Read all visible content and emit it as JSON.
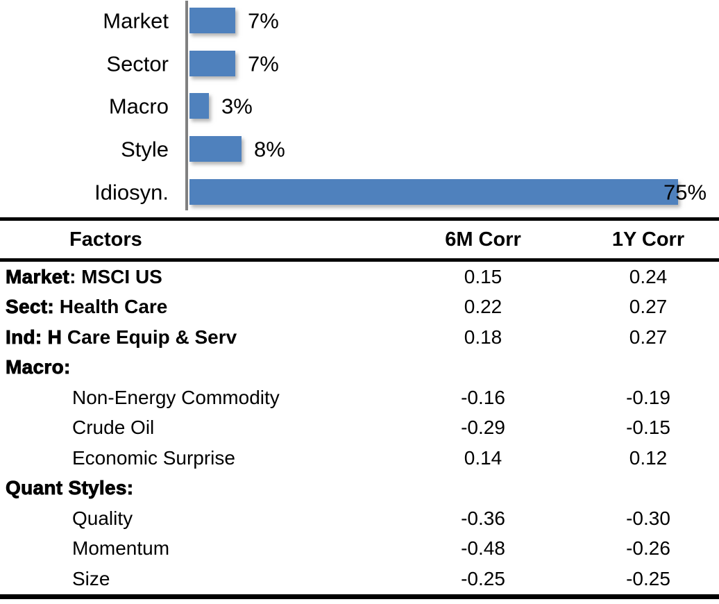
{
  "chart_data": {
    "type": "bar",
    "orientation": "horizontal",
    "title": "",
    "xlabel": "",
    "ylabel": "",
    "categories": [
      "Market",
      "Sector",
      "Macro",
      "Style",
      "Idiosyn."
    ],
    "values": [
      7,
      7,
      3,
      8,
      75
    ],
    "value_labels": [
      "7%",
      "7%",
      "3%",
      "8%",
      "75%"
    ],
    "xlim": [
      0,
      75
    ],
    "grid": false,
    "legend": false,
    "bar_color": "#4f81bd",
    "axis_color": "#808080"
  },
  "table": {
    "headers": {
      "factor": "Factors",
      "c6m": "6M Corr",
      "c1y": "1Y Corr"
    },
    "rows": [
      {
        "indent": false,
        "parts": [
          {
            "t": "Market",
            "w": "heavy"
          },
          {
            "t": ": MSCI US",
            "w": "bold"
          }
        ],
        "c6m": "0.15",
        "c1y": "0.24"
      },
      {
        "indent": false,
        "parts": [
          {
            "t": "Sect:",
            "w": "heavy"
          },
          {
            "t": " Health Care",
            "w": "bold"
          }
        ],
        "c6m": "0.22",
        "c1y": "0.27"
      },
      {
        "indent": false,
        "parts": [
          {
            "t": "Ind: H",
            "w": "heavy"
          },
          {
            "t": " Care Equip & Serv",
            "w": "bold"
          }
        ],
        "c6m": "0.18",
        "c1y": "0.27"
      },
      {
        "indent": false,
        "parts": [
          {
            "t": "Macro:",
            "w": "heavy"
          }
        ],
        "c6m": "",
        "c1y": ""
      },
      {
        "indent": true,
        "parts": [
          {
            "t": "Non-Energy Commodity",
            "w": "normal"
          }
        ],
        "c6m": "-0.16",
        "c1y": "-0.19"
      },
      {
        "indent": true,
        "parts": [
          {
            "t": "Crude Oil",
            "w": "normal"
          }
        ],
        "c6m": "-0.29",
        "c1y": "-0.15"
      },
      {
        "indent": true,
        "parts": [
          {
            "t": "Economic Surprise",
            "w": "normal"
          }
        ],
        "c6m": "0.14",
        "c1y": "0.12"
      },
      {
        "indent": false,
        "parts": [
          {
            "t": "Quant Styles:",
            "w": "heavy"
          }
        ],
        "c6m": "",
        "c1y": ""
      },
      {
        "indent": true,
        "parts": [
          {
            "t": "Quality",
            "w": "normal"
          }
        ],
        "c6m": "-0.36",
        "c1y": "-0.30"
      },
      {
        "indent": true,
        "parts": [
          {
            "t": "Momentum",
            "w": "normal"
          }
        ],
        "c6m": "-0.48",
        "c1y": "-0.26"
      },
      {
        "indent": true,
        "parts": [
          {
            "t": "Size",
            "w": "normal"
          }
        ],
        "c6m": "-0.25",
        "c1y": "-0.25"
      }
    ]
  }
}
